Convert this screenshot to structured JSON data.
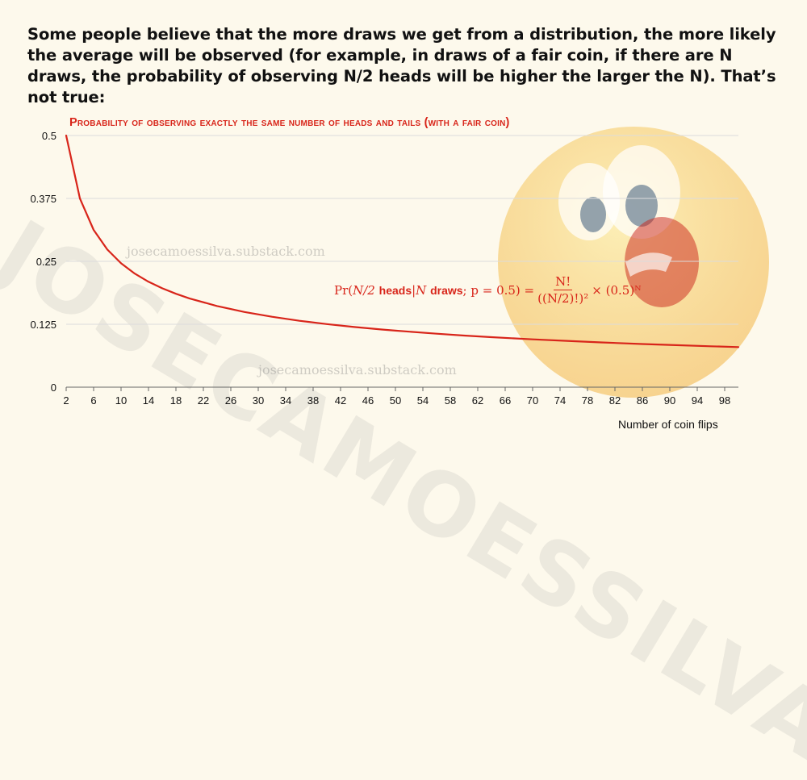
{
  "intro_text": "Some people believe that the more draws we get from a distribution, the more likely the average will be observed (for example, in draws of a fair coin, if there are N draws, the probability of observing N/2 heads will be higher the larger the N). That’s not true:",
  "watermarks": {
    "brand": "JOSECAMOESSILVA",
    "url_1": "josecamoessilva.substack.com",
    "url_2": "josecamoessilva.substack.com"
  },
  "formula": {
    "lhs_open": "Pr(",
    "n_half": "N/2",
    "heads": "heads",
    "bar": " | ",
    "n": "N",
    "draws": "draws",
    "p_part": "; p = 0.5) =",
    "numerator": "N!",
    "denominator": "((N/2)!)²",
    "tail": "× (0.5)ᴺ"
  },
  "colors": {
    "curve": "#d8251a",
    "title": "#d8251a",
    "grid": "#dcdcdc"
  },
  "chart_data": {
    "type": "line",
    "title": "Probability of observing exactly the same number of heads and tails (with a fair coin)",
    "xlabel": "Number of coin flips",
    "ylabel": "",
    "xlim": [
      2,
      100
    ],
    "ylim": [
      0,
      0.5
    ],
    "x_ticks": [
      "2",
      "6",
      "10",
      "14",
      "18",
      "22",
      "26",
      "30",
      "34",
      "38",
      "42",
      "46",
      "50",
      "54",
      "58",
      "62",
      "66",
      "70",
      "74",
      "78",
      "82",
      "86",
      "90",
      "94",
      "98"
    ],
    "y_ticks": [
      "0",
      "0.125",
      "0.25",
      "0.375",
      "0.5"
    ],
    "grid": "horizontal",
    "series": [
      {
        "x": [
          2,
          4,
          6,
          8,
          10,
          12,
          14,
          16,
          18,
          20,
          24,
          28,
          32,
          36,
          40,
          44,
          48,
          50,
          56,
          60,
          64,
          70,
          76,
          80,
          86,
          90,
          96,
          100
        ],
        "values": [
          0.5,
          0.375,
          0.3125,
          0.2734,
          0.2461,
          0.2256,
          0.2095,
          0.1964,
          0.1855,
          0.1762,
          0.1612,
          0.1494,
          0.1399,
          0.1319,
          0.1254,
          0.1196,
          0.1146,
          0.1123,
          0.1062,
          0.1026,
          0.0993,
          0.095,
          0.0913,
          0.0889,
          0.0858,
          0.0839,
          0.0813,
          0.0796
        ]
      }
    ]
  }
}
